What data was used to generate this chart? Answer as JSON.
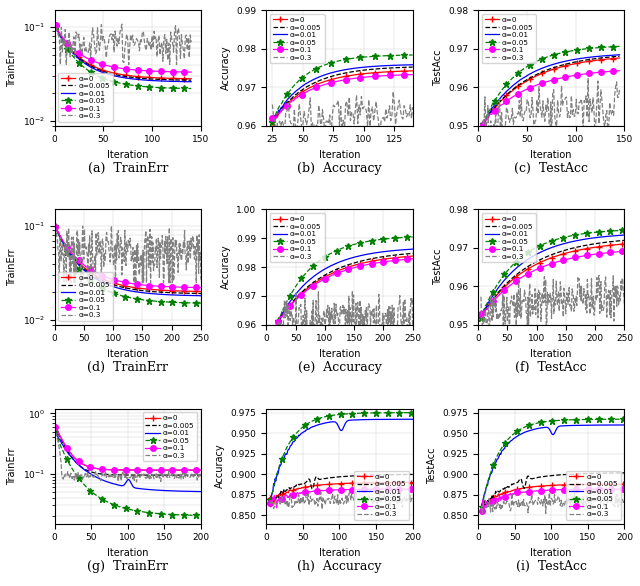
{
  "legend_labels": [
    "α=0",
    "α=0.005",
    "α=0.01",
    "α=0.05",
    "α=0.1",
    "α=0.3"
  ],
  "colors": [
    "red",
    "black",
    "blue",
    "green",
    "magenta",
    "gray"
  ],
  "linestyles": [
    "-",
    "--",
    "-",
    "--",
    "-",
    "--"
  ],
  "subplot_labels": [
    "(a)  TrainErr",
    "(b)  Accuracy",
    "(c)  TestAcc",
    "(d)  TrainErr",
    "(e)  Accuracy",
    "(f)  TestAcc",
    "(g)  TrainErr",
    "(h)  Accuracy",
    "(i)  TestAcc"
  ]
}
